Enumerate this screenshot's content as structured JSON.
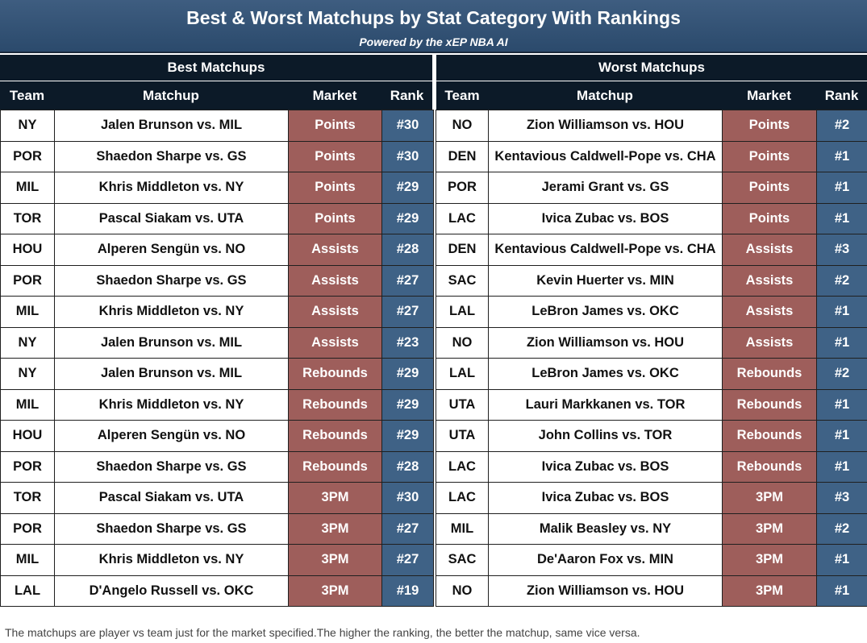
{
  "header": {
    "title": "Best & Worst Matchups by Stat Category With Rankings",
    "subtitle": "Powered by the xEP NBA AI"
  },
  "best": {
    "section_label": "Best Matchups",
    "columns": {
      "team": "Team",
      "matchup": "Matchup",
      "market": "Market",
      "rank": "Rank"
    },
    "rows": [
      {
        "team": "NY",
        "matchup": "Jalen Brunson vs. MIL",
        "market": "Points",
        "rank": "#30"
      },
      {
        "team": "POR",
        "matchup": "Shaedon Sharpe vs. GS",
        "market": "Points",
        "rank": "#30"
      },
      {
        "team": "MIL",
        "matchup": "Khris Middleton vs. NY",
        "market": "Points",
        "rank": "#29"
      },
      {
        "team": "TOR",
        "matchup": "Pascal Siakam vs. UTA",
        "market": "Points",
        "rank": "#29"
      },
      {
        "team": "HOU",
        "matchup": "Alperen Sengün vs. NO",
        "market": "Assists",
        "rank": "#28"
      },
      {
        "team": "POR",
        "matchup": "Shaedon Sharpe vs. GS",
        "market": "Assists",
        "rank": "#27"
      },
      {
        "team": "MIL",
        "matchup": "Khris Middleton vs. NY",
        "market": "Assists",
        "rank": "#27"
      },
      {
        "team": "NY",
        "matchup": "Jalen Brunson vs. MIL",
        "market": "Assists",
        "rank": "#23"
      },
      {
        "team": "NY",
        "matchup": "Jalen Brunson vs. MIL",
        "market": "Rebounds",
        "rank": "#29"
      },
      {
        "team": "MIL",
        "matchup": "Khris Middleton vs. NY",
        "market": "Rebounds",
        "rank": "#29"
      },
      {
        "team": "HOU",
        "matchup": "Alperen Sengün vs. NO",
        "market": "Rebounds",
        "rank": "#29"
      },
      {
        "team": "POR",
        "matchup": "Shaedon Sharpe vs. GS",
        "market": "Rebounds",
        "rank": "#28"
      },
      {
        "team": "TOR",
        "matchup": "Pascal Siakam vs. UTA",
        "market": "3PM",
        "rank": "#30"
      },
      {
        "team": "POR",
        "matchup": "Shaedon Sharpe vs. GS",
        "market": "3PM",
        "rank": "#27"
      },
      {
        "team": "MIL",
        "matchup": "Khris Middleton vs. NY",
        "market": "3PM",
        "rank": "#27"
      },
      {
        "team": "LAL",
        "matchup": "D'Angelo Russell vs. OKC",
        "market": "3PM",
        "rank": "#19"
      }
    ]
  },
  "worst": {
    "section_label": "Worst Matchups",
    "columns": {
      "team": "Team",
      "matchup": "Matchup",
      "market": "Market",
      "rank": "Rank"
    },
    "rows": [
      {
        "team": "NO",
        "matchup": "Zion Williamson vs. HOU",
        "market": "Points",
        "rank": "#2"
      },
      {
        "team": "DEN",
        "matchup": "Kentavious Caldwell-Pope vs. CHA",
        "market": "Points",
        "rank": "#1"
      },
      {
        "team": "POR",
        "matchup": "Jerami Grant vs. GS",
        "market": "Points",
        "rank": "#1"
      },
      {
        "team": "LAC",
        "matchup": "Ivica Zubac vs. BOS",
        "market": "Points",
        "rank": "#1"
      },
      {
        "team": "DEN",
        "matchup": "Kentavious Caldwell-Pope vs. CHA",
        "market": "Assists",
        "rank": "#3"
      },
      {
        "team": "SAC",
        "matchup": "Kevin Huerter vs. MIN",
        "market": "Assists",
        "rank": "#2"
      },
      {
        "team": "LAL",
        "matchup": "LeBron James vs. OKC",
        "market": "Assists",
        "rank": "#1"
      },
      {
        "team": "NO",
        "matchup": "Zion Williamson vs. HOU",
        "market": "Assists",
        "rank": "#1"
      },
      {
        "team": "LAL",
        "matchup": "LeBron James vs. OKC",
        "market": "Rebounds",
        "rank": "#2"
      },
      {
        "team": "UTA",
        "matchup": "Lauri Markkanen vs. TOR",
        "market": "Rebounds",
        "rank": "#1"
      },
      {
        "team": "UTA",
        "matchup": "John Collins vs. TOR",
        "market": "Rebounds",
        "rank": "#1"
      },
      {
        "team": "LAC",
        "matchup": "Ivica Zubac vs. BOS",
        "market": "Rebounds",
        "rank": "#1"
      },
      {
        "team": "LAC",
        "matchup": "Ivica Zubac vs. BOS",
        "market": "3PM",
        "rank": "#3"
      },
      {
        "team": "MIL",
        "matchup": "Malik Beasley vs. NY",
        "market": "3PM",
        "rank": "#2"
      },
      {
        "team": "SAC",
        "matchup": "De'Aaron Fox vs. MIN",
        "market": "3PM",
        "rank": "#1"
      },
      {
        "team": "NO",
        "matchup": "Zion Williamson vs. HOU",
        "market": "3PM",
        "rank": "#1"
      }
    ]
  },
  "footer": {
    "note": "The matchups are player vs team just for the market specified.The higher the ranking, the better the matchup, same vice versa."
  },
  "colors": {
    "banner": "#2f4f73",
    "header_bg": "#0c1a28",
    "market_cell": "#9e5e5b",
    "rank_cell": "#3f6286"
  }
}
